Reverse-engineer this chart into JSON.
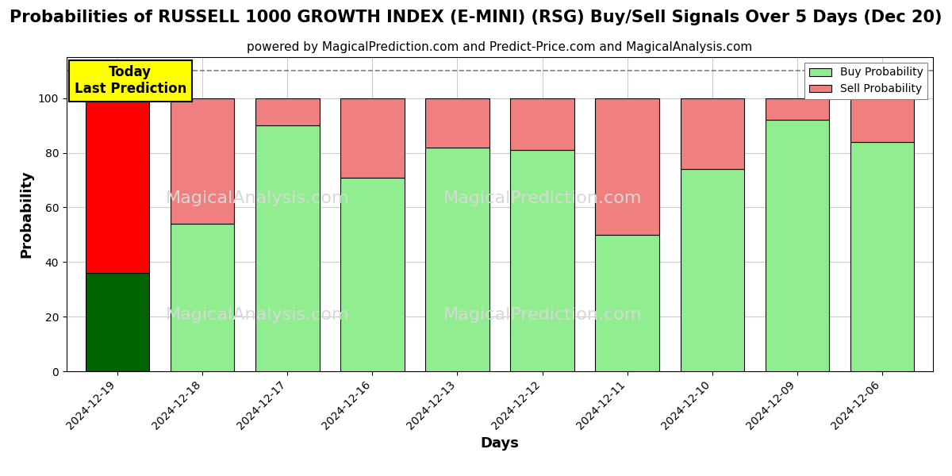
{
  "title": "Probabilities of RUSSELL 1000 GROWTH INDEX (E-MINI) (RSG) Buy/Sell Signals Over 5 Days (Dec 20)",
  "subtitle": "powered by MagicalPrediction.com and Predict-Price.com and MagicalAnalysis.com",
  "xlabel": "Days",
  "ylabel": "Probability",
  "categories": [
    "2024-12-19",
    "2024-12-18",
    "2024-12-17",
    "2024-12-16",
    "2024-12-13",
    "2024-12-12",
    "2024-12-11",
    "2024-12-10",
    "2024-12-09",
    "2024-12-06"
  ],
  "buy_values": [
    36,
    54,
    90,
    71,
    82,
    81,
    50,
    74,
    92,
    84
  ],
  "sell_values": [
    64,
    46,
    10,
    29,
    18,
    19,
    50,
    26,
    8,
    16
  ],
  "buy_colors": [
    "#006400",
    "#90EE90",
    "#90EE90",
    "#90EE90",
    "#90EE90",
    "#90EE90",
    "#90EE90",
    "#90EE90",
    "#90EE90",
    "#90EE90"
  ],
  "sell_colors": [
    "#FF0000",
    "#F08080",
    "#F08080",
    "#F08080",
    "#F08080",
    "#F08080",
    "#F08080",
    "#F08080",
    "#F08080",
    "#F08080"
  ],
  "today_annotation": "Today\nLast Prediction",
  "today_idx": 0,
  "dashed_line_y": 110,
  "ylim": [
    0,
    115
  ],
  "yticks": [
    0,
    20,
    40,
    60,
    80,
    100
  ],
  "legend_buy_color": "#90EE90",
  "legend_sell_color": "#F08080",
  "legend_buy_label": "Buy Probability",
  "legend_sell_label": "Sell Probability",
  "bg_color": "#FFFFFF",
  "grid_color": "#CCCCCC",
  "title_fontsize": 15,
  "subtitle_fontsize": 11,
  "axis_label_fontsize": 13,
  "tick_fontsize": 10,
  "watermark_color": "#D8D8D8",
  "bar_width": 0.75
}
